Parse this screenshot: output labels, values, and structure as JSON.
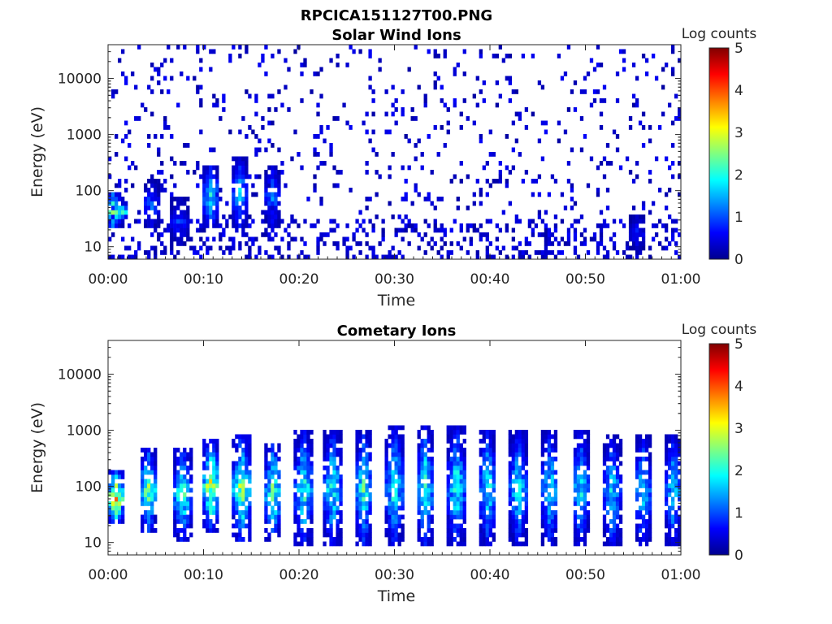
{
  "figure": {
    "title": "RPCICA151127T00.PNG"
  },
  "colorbar_colors": [
    "#00008f",
    "#0000ff",
    "#0080ff",
    "#00ffff",
    "#80ff80",
    "#ffff00",
    "#ff8000",
    "#ff0000",
    "#800000"
  ],
  "chart_data": [
    {
      "type": "heatmap",
      "title": "Solar Wind Ions",
      "xlabel": "Time",
      "ylabel": "Energy (eV)",
      "x_ticks": [
        "00:00",
        "00:10",
        "00:20",
        "00:30",
        "00:40",
        "00:50",
        "01:00"
      ],
      "x_range_minutes": [
        0,
        60
      ],
      "y_scale": "log",
      "y_ticks": [
        10,
        100,
        1000,
        10000
      ],
      "y_tick_labels": [
        "10",
        "100",
        "1000",
        "10000"
      ],
      "y_range_eV": [
        6,
        40000
      ],
      "colorbar": {
        "label": "Log counts",
        "range": [
          0,
          5
        ],
        "ticks": [
          "0",
          "1",
          "2",
          "3",
          "4",
          "5"
        ],
        "colormap": "jet"
      },
      "features": {
        "background_hits_log_counts": 0.2,
        "bursts": [
          {
            "minute": 0.5,
            "e_low": 20,
            "e_high": 100,
            "peak": 2.6
          },
          {
            "minute": 1.2,
            "e_low": 30,
            "e_high": 60,
            "peak": 2.9
          },
          {
            "minute": 4.5,
            "e_low": 20,
            "e_high": 150,
            "peak": 1.2
          },
          {
            "minute": 7.5,
            "e_low": 10,
            "e_high": 80,
            "peak": 1.0
          },
          {
            "minute": 10.8,
            "e_low": 20,
            "e_high": 300,
            "peak": 2.0
          },
          {
            "minute": 13.8,
            "e_low": 20,
            "e_high": 400,
            "peak": 1.8
          },
          {
            "minute": 17.2,
            "e_low": 20,
            "e_high": 300,
            "peak": 1.3
          },
          {
            "minute": 55.5,
            "e_low": 8,
            "e_high": 40,
            "peak": 0.8
          }
        ]
      }
    },
    {
      "type": "heatmap",
      "title": "Cometary Ions",
      "xlabel": "Time",
      "ylabel": "Energy (eV)",
      "x_ticks": [
        "00:00",
        "00:10",
        "00:20",
        "00:30",
        "00:40",
        "00:50",
        "01:00"
      ],
      "x_range_minutes": [
        0,
        60
      ],
      "y_scale": "log",
      "y_ticks": [
        10,
        100,
        1000,
        10000
      ],
      "y_tick_labels": [
        "10",
        "100",
        "1000",
        "10000"
      ],
      "y_range_eV": [
        6,
        40000
      ],
      "colorbar": {
        "label": "Log counts",
        "range": [
          0,
          5
        ],
        "ticks": [
          "0",
          "1",
          "2",
          "3",
          "4",
          "5"
        ],
        "colormap": "jet"
      },
      "features": {
        "bursts": [
          {
            "minute": 0.8,
            "e_low": 20,
            "e_high": 200,
            "peak": 3.7
          },
          {
            "minute": 4.2,
            "e_low": 15,
            "e_high": 500,
            "peak": 2.8
          },
          {
            "minute": 7.8,
            "e_low": 10,
            "e_high": 500,
            "peak": 2.6
          },
          {
            "minute": 10.8,
            "e_low": 15,
            "e_high": 700,
            "peak": 3.2
          },
          {
            "minute": 14.0,
            "e_low": 10,
            "e_high": 800,
            "peak": 3.0
          },
          {
            "minute": 17.3,
            "e_low": 10,
            "e_high": 600,
            "peak": 2.6
          },
          {
            "minute": 20.5,
            "e_low": 8,
            "e_high": 1000,
            "peak": 2.4
          },
          {
            "minute": 23.5,
            "e_low": 8,
            "e_high": 1000,
            "peak": 2.3
          },
          {
            "minute": 26.8,
            "e_low": 8,
            "e_high": 1000,
            "peak": 2.3
          },
          {
            "minute": 30.0,
            "e_low": 8,
            "e_high": 1200,
            "peak": 2.3
          },
          {
            "minute": 33.2,
            "e_low": 8,
            "e_high": 1200,
            "peak": 2.3
          },
          {
            "minute": 36.5,
            "e_low": 8,
            "e_high": 1200,
            "peak": 2.3
          },
          {
            "minute": 39.8,
            "e_low": 8,
            "e_high": 1000,
            "peak": 2.2
          },
          {
            "minute": 43.0,
            "e_low": 8,
            "e_high": 1000,
            "peak": 2.1
          },
          {
            "minute": 46.3,
            "e_low": 8,
            "e_high": 1000,
            "peak": 2.1
          },
          {
            "minute": 49.5,
            "e_low": 8,
            "e_high": 1000,
            "peak": 2.0
          },
          {
            "minute": 52.8,
            "e_low": 8,
            "e_high": 800,
            "peak": 2.0
          },
          {
            "minute": 56.0,
            "e_low": 8,
            "e_high": 800,
            "peak": 2.0
          },
          {
            "minute": 59.2,
            "e_low": 8,
            "e_high": 800,
            "peak": 1.9
          }
        ]
      }
    }
  ]
}
